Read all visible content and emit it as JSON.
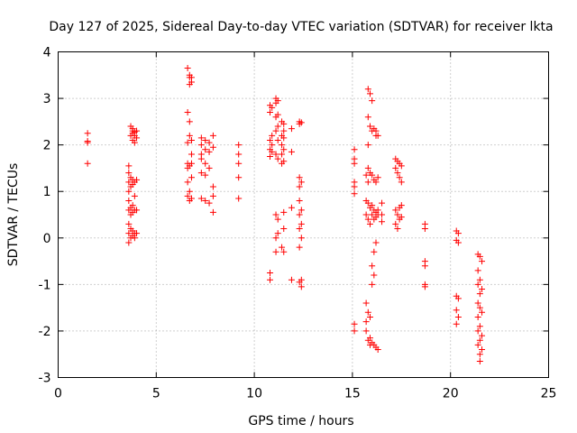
{
  "chart_data": {
    "type": "scatter",
    "title": "Day 127 of 2025, Sidereal Day-to-day VTEC variation (SDTVAR) for receiver lkta",
    "xlabel": "GPS time / hours",
    "ylabel": "SDTVAR / TECUs",
    "xlim": [
      0,
      25
    ],
    "ylim": [
      -3,
      4
    ],
    "xticks": [
      0,
      5,
      10,
      15,
      20,
      25
    ],
    "yticks": [
      -3,
      -2,
      -1,
      0,
      1,
      2,
      3,
      4
    ],
    "grid": true,
    "marker": "+",
    "marker_color": "#ff0000",
    "series": [
      {
        "name": "SDTVAR",
        "points": [
          [
            1.5,
            2.25
          ],
          [
            1.5,
            2.08
          ],
          [
            1.5,
            2.05
          ],
          [
            1.5,
            1.6
          ],
          [
            3.6,
            1.55
          ],
          [
            3.6,
            1.4
          ],
          [
            3.6,
            1.2
          ],
          [
            3.6,
            1.0
          ],
          [
            3.6,
            0.8
          ],
          [
            3.6,
            0.6
          ],
          [
            3.6,
            0.3
          ],
          [
            3.6,
            0.1
          ],
          [
            3.6,
            -0.1
          ],
          [
            3.7,
            2.4
          ],
          [
            3.7,
            2.2
          ],
          [
            3.7,
            1.3
          ],
          [
            3.7,
            1.1
          ],
          [
            3.7,
            0.65
          ],
          [
            3.7,
            0.5
          ],
          [
            3.7,
            0.2
          ],
          [
            3.7,
            0.0
          ],
          [
            3.8,
            2.35
          ],
          [
            3.8,
            2.3
          ],
          [
            3.8,
            2.25
          ],
          [
            3.8,
            2.1
          ],
          [
            3.8,
            1.25
          ],
          [
            3.8,
            1.15
          ],
          [
            3.8,
            0.7
          ],
          [
            3.8,
            0.55
          ],
          [
            3.8,
            0.15
          ],
          [
            3.8,
            0.05
          ],
          [
            3.9,
            2.28
          ],
          [
            3.9,
            2.2
          ],
          [
            3.9,
            2.05
          ],
          [
            3.9,
            1.2
          ],
          [
            3.9,
            0.9
          ],
          [
            3.9,
            0.6
          ],
          [
            3.9,
            0.1
          ],
          [
            3.9,
            0.0
          ],
          [
            4.0,
            2.3
          ],
          [
            4.0,
            2.15
          ],
          [
            4.0,
            1.25
          ],
          [
            4.0,
            0.6
          ],
          [
            4.0,
            0.1
          ],
          [
            6.6,
            3.65
          ],
          [
            6.6,
            2.7
          ],
          [
            6.6,
            2.05
          ],
          [
            6.6,
            1.6
          ],
          [
            6.6,
            1.5
          ],
          [
            6.6,
            1.2
          ],
          [
            6.6,
            0.9
          ],
          [
            6.7,
            3.5
          ],
          [
            6.7,
            3.45
          ],
          [
            6.7,
            3.3
          ],
          [
            6.7,
            2.5
          ],
          [
            6.7,
            2.2
          ],
          [
            6.7,
            1.55
          ],
          [
            6.7,
            1.0
          ],
          [
            6.7,
            0.8
          ],
          [
            6.8,
            3.45
          ],
          [
            6.8,
            3.35
          ],
          [
            6.8,
            2.1
          ],
          [
            6.8,
            1.8
          ],
          [
            6.8,
            1.6
          ],
          [
            6.8,
            1.3
          ],
          [
            6.8,
            0.85
          ],
          [
            7.3,
            2.15
          ],
          [
            7.3,
            2.0
          ],
          [
            7.3,
            1.8
          ],
          [
            7.3,
            1.7
          ],
          [
            7.3,
            1.4
          ],
          [
            7.3,
            0.85
          ],
          [
            7.5,
            2.1
          ],
          [
            7.5,
            1.9
          ],
          [
            7.5,
            1.6
          ],
          [
            7.5,
            1.35
          ],
          [
            7.5,
            0.8
          ],
          [
            7.7,
            2.05
          ],
          [
            7.7,
            1.85
          ],
          [
            7.7,
            1.5
          ],
          [
            7.7,
            0.75
          ],
          [
            7.9,
            2.2
          ],
          [
            7.9,
            1.95
          ],
          [
            7.9,
            1.1
          ],
          [
            7.9,
            0.9
          ],
          [
            7.9,
            0.55
          ],
          [
            9.2,
            2.0
          ],
          [
            9.2,
            1.8
          ],
          [
            9.2,
            1.6
          ],
          [
            9.2,
            1.3
          ],
          [
            9.2,
            0.85
          ],
          [
            10.8,
            2.85
          ],
          [
            10.8,
            2.7
          ],
          [
            10.8,
            2.1
          ],
          [
            10.8,
            1.9
          ],
          [
            10.8,
            1.75
          ],
          [
            10.8,
            -0.75
          ],
          [
            10.8,
            -0.9
          ],
          [
            10.9,
            2.8
          ],
          [
            10.9,
            2.2
          ],
          [
            10.9,
            2.0
          ],
          [
            10.9,
            1.85
          ],
          [
            11.1,
            3.0
          ],
          [
            11.1,
            2.9
          ],
          [
            11.1,
            2.6
          ],
          [
            11.1,
            2.3
          ],
          [
            11.1,
            1.8
          ],
          [
            11.1,
            0.5
          ],
          [
            11.1,
            0.0
          ],
          [
            11.1,
            -0.3
          ],
          [
            11.2,
            2.95
          ],
          [
            11.2,
            2.65
          ],
          [
            11.2,
            2.4
          ],
          [
            11.2,
            2.1
          ],
          [
            11.2,
            1.7
          ],
          [
            11.2,
            0.4
          ],
          [
            11.2,
            0.1
          ],
          [
            11.4,
            2.5
          ],
          [
            11.4,
            2.2
          ],
          [
            11.4,
            2.0
          ],
          [
            11.4,
            1.8
          ],
          [
            11.4,
            1.6
          ],
          [
            11.4,
            -0.2
          ],
          [
            11.5,
            2.45
          ],
          [
            11.5,
            2.3
          ],
          [
            11.5,
            2.15
          ],
          [
            11.5,
            1.9
          ],
          [
            11.5,
            1.65
          ],
          [
            11.5,
            0.55
          ],
          [
            11.5,
            0.2
          ],
          [
            11.5,
            -0.3
          ],
          [
            11.9,
            2.35
          ],
          [
            11.9,
            1.85
          ],
          [
            11.9,
            0.65
          ],
          [
            11.9,
            -0.9
          ],
          [
            12.3,
            2.5
          ],
          [
            12.3,
            2.45
          ],
          [
            12.3,
            1.3
          ],
          [
            12.3,
            1.1
          ],
          [
            12.3,
            0.8
          ],
          [
            12.3,
            0.5
          ],
          [
            12.3,
            0.2
          ],
          [
            12.3,
            -0.2
          ],
          [
            12.3,
            -0.95
          ],
          [
            12.4,
            2.48
          ],
          [
            12.4,
            1.2
          ],
          [
            12.4,
            0.6
          ],
          [
            12.4,
            0.3
          ],
          [
            12.4,
            0.0
          ],
          [
            12.4,
            -0.9
          ],
          [
            12.4,
            -1.05
          ],
          [
            15.1,
            1.9
          ],
          [
            15.1,
            1.7
          ],
          [
            15.1,
            1.6
          ],
          [
            15.1,
            1.2
          ],
          [
            15.1,
            1.1
          ],
          [
            15.1,
            0.95
          ],
          [
            15.1,
            -1.85
          ],
          [
            15.1,
            -2.0
          ],
          [
            15.7,
            1.35
          ],
          [
            15.7,
            0.8
          ],
          [
            15.7,
            0.5
          ],
          [
            15.7,
            -1.4
          ],
          [
            15.7,
            -1.8
          ],
          [
            15.7,
            -2.0
          ],
          [
            15.8,
            3.2
          ],
          [
            15.8,
            2.6
          ],
          [
            15.8,
            2.0
          ],
          [
            15.8,
            1.5
          ],
          [
            15.8,
            1.2
          ],
          [
            15.8,
            0.75
          ],
          [
            15.8,
            0.4
          ],
          [
            15.8,
            -1.6
          ],
          [
            15.8,
            -2.2
          ],
          [
            15.9,
            3.1
          ],
          [
            15.9,
            2.4
          ],
          [
            15.9,
            1.4
          ],
          [
            15.9,
            0.65
          ],
          [
            15.9,
            0.3
          ],
          [
            15.9,
            -1.7
          ],
          [
            15.9,
            -2.15
          ],
          [
            15.9,
            -2.3
          ],
          [
            16.0,
            2.95
          ],
          [
            16.0,
            2.3
          ],
          [
            16.0,
            1.35
          ],
          [
            16.0,
            0.7
          ],
          [
            16.0,
            0.5
          ],
          [
            16.0,
            -0.6
          ],
          [
            16.0,
            -1.0
          ],
          [
            16.0,
            -2.25
          ],
          [
            16.1,
            2.35
          ],
          [
            16.1,
            1.25
          ],
          [
            16.1,
            0.6
          ],
          [
            16.1,
            0.4
          ],
          [
            16.1,
            -0.3
          ],
          [
            16.1,
            -0.8
          ],
          [
            16.1,
            -2.3
          ],
          [
            16.2,
            2.3
          ],
          [
            16.2,
            2.2
          ],
          [
            16.2,
            1.2
          ],
          [
            16.2,
            0.55
          ],
          [
            16.2,
            0.45
          ],
          [
            16.2,
            -0.1
          ],
          [
            16.2,
            -2.35
          ],
          [
            16.3,
            2.2
          ],
          [
            16.3,
            1.3
          ],
          [
            16.3,
            0.6
          ],
          [
            16.3,
            0.5
          ],
          [
            16.3,
            -2.4
          ],
          [
            16.5,
            0.75
          ],
          [
            16.5,
            0.5
          ],
          [
            16.5,
            0.35
          ],
          [
            17.2,
            1.7
          ],
          [
            17.2,
            1.5
          ],
          [
            17.2,
            0.6
          ],
          [
            17.2,
            0.3
          ],
          [
            17.3,
            1.65
          ],
          [
            17.3,
            1.4
          ],
          [
            17.3,
            0.5
          ],
          [
            17.3,
            0.2
          ],
          [
            17.4,
            1.6
          ],
          [
            17.4,
            1.3
          ],
          [
            17.4,
            0.65
          ],
          [
            17.4,
            0.4
          ],
          [
            17.5,
            1.55
          ],
          [
            17.5,
            1.2
          ],
          [
            17.5,
            0.7
          ],
          [
            17.5,
            0.45
          ],
          [
            18.7,
            0.3
          ],
          [
            18.7,
            0.2
          ],
          [
            18.7,
            -0.5
          ],
          [
            18.7,
            -0.6
          ],
          [
            18.7,
            -1.0
          ],
          [
            18.7,
            -1.05
          ],
          [
            20.3,
            0.15
          ],
          [
            20.3,
            -0.05
          ],
          [
            20.3,
            -1.25
          ],
          [
            20.3,
            -1.55
          ],
          [
            20.3,
            -1.85
          ],
          [
            20.4,
            0.1
          ],
          [
            20.4,
            -0.1
          ],
          [
            20.4,
            -1.3
          ],
          [
            20.4,
            -1.7
          ],
          [
            21.4,
            -0.35
          ],
          [
            21.4,
            -0.7
          ],
          [
            21.4,
            -1.0
          ],
          [
            21.4,
            -1.4
          ],
          [
            21.4,
            -1.7
          ],
          [
            21.4,
            -2.0
          ],
          [
            21.4,
            -2.3
          ],
          [
            21.5,
            -0.4
          ],
          [
            21.5,
            -0.9
          ],
          [
            21.5,
            -1.2
          ],
          [
            21.5,
            -1.5
          ],
          [
            21.5,
            -1.9
          ],
          [
            21.5,
            -2.2
          ],
          [
            21.5,
            -2.5
          ],
          [
            21.5,
            -2.65
          ],
          [
            21.6,
            -0.5
          ],
          [
            21.6,
            -1.1
          ],
          [
            21.6,
            -1.6
          ],
          [
            21.6,
            -2.1
          ],
          [
            21.6,
            -2.4
          ]
        ]
      }
    ]
  }
}
